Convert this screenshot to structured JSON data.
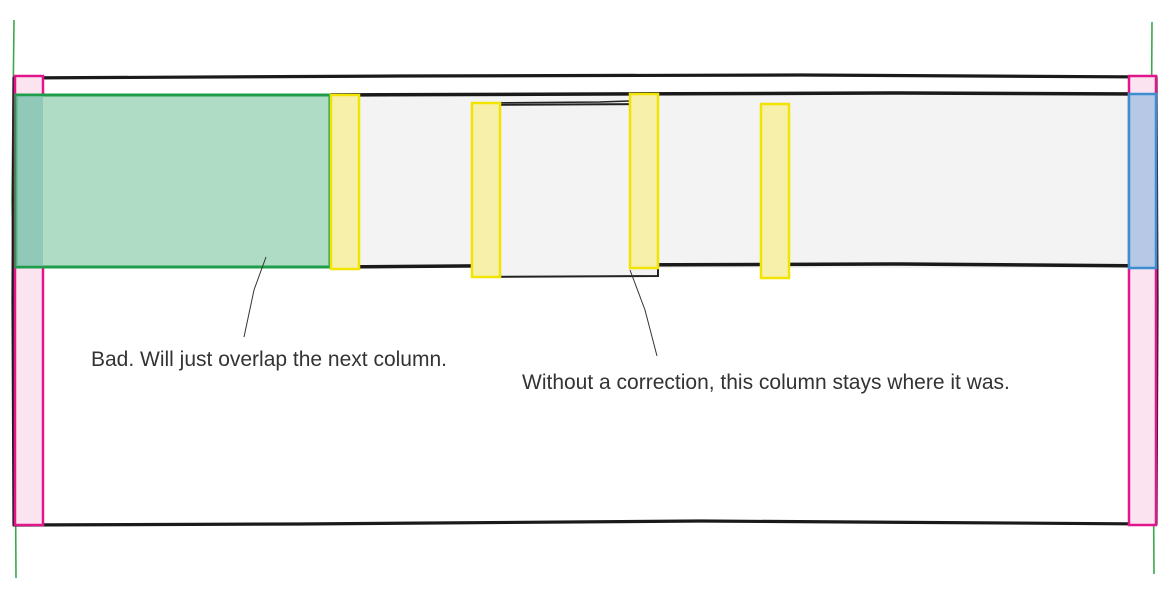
{
  "annotations": {
    "bad": "Bad. Will just overlap the next column.",
    "correction": "Without a correction, this column stays where it was."
  },
  "colors": {
    "outline": "#1a1a1a",
    "green_stroke": "#1e9e4a",
    "green_fill": "#aedcc4",
    "magenta_stroke": "#e0168a",
    "magenta_fill": "#fbe3f0",
    "yellow_stroke": "#f2e400",
    "yellow_fill": "#f6f0aa",
    "blue_stroke": "#3b8fd0",
    "blue_fill": "#b7c8e6",
    "row_fill": "#f3f3f3"
  }
}
